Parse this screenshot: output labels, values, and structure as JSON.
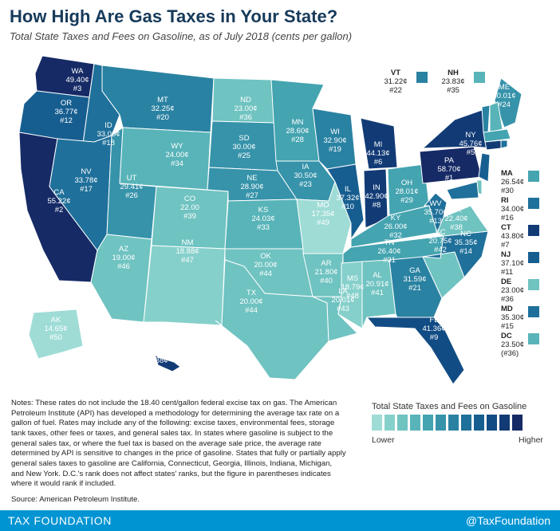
{
  "title": "How High Are Gas Taxes in Your State?",
  "subtitle": "Total State Taxes and Fees on Gasoline, as of July 2018 (cents per gallon)",
  "scale_colors": [
    "#9fdcd6",
    "#86d0cb",
    "#6fc3c1",
    "#58b4b8",
    "#44a4b0",
    "#3693aa",
    "#2a82a2",
    "#1f709a",
    "#175e90",
    "#124c84",
    "#123b76",
    "#162a66"
  ],
  "legend": {
    "title": "Total State Taxes and Fees on Gasoline",
    "low": "Lower",
    "high": "Higher"
  },
  "states": [
    {
      "code": "WA",
      "value": "49.40¢",
      "rank": "#3",
      "level": 11
    },
    {
      "code": "OR",
      "value": "36.77¢",
      "rank": "#12",
      "level": 8
    },
    {
      "code": "CA",
      "value": "55.22¢",
      "rank": "#2",
      "level": 11
    },
    {
      "code": "ID",
      "value": "33.00¢",
      "rank": "#18",
      "level": 7
    },
    {
      "code": "NV",
      "value": "33.78¢",
      "rank": "#17",
      "level": 7
    },
    {
      "code": "MT",
      "value": "32.25¢",
      "rank": "#20",
      "level": 6
    },
    {
      "code": "WY",
      "value": "24.00¢",
      "rank": "#34",
      "level": 3
    },
    {
      "code": "UT",
      "value": "29.41¢",
      "rank": "#26",
      "level": 5
    },
    {
      "code": "AZ",
      "value": "19.00¢",
      "rank": "#46",
      "level": 2
    },
    {
      "code": "CO",
      "value": "22.00",
      "rank": "#39",
      "level": 2
    },
    {
      "code": "NM",
      "value": "18.88¢",
      "rank": "#47",
      "level": 1
    },
    {
      "code": "ND",
      "value": "23.00¢",
      "rank": "#36",
      "level": 2
    },
    {
      "code": "SD",
      "value": "30.00¢",
      "rank": "#25",
      "level": 5
    },
    {
      "code": "NE",
      "value": "28.90¢",
      "rank": "#27",
      "level": 5
    },
    {
      "code": "KS",
      "value": "24.03¢",
      "rank": "#33",
      "level": 3
    },
    {
      "code": "OK",
      "value": "20.00¢",
      "rank": "#44",
      "level": 2
    },
    {
      "code": "TX",
      "value": "20.00¢",
      "rank": "#44",
      "level": 2
    },
    {
      "code": "MN",
      "value": "28.60¢",
      "rank": "#28",
      "level": 4
    },
    {
      "code": "IA",
      "value": "30.50¢",
      "rank": "#23",
      "level": 5
    },
    {
      "code": "MO",
      "value": "17.35¢",
      "rank": "#49",
      "level": 0
    },
    {
      "code": "AR",
      "value": "21.80¢",
      "rank": "#40",
      "level": 2
    },
    {
      "code": "LA",
      "value": "20.01¢",
      "rank": "#43",
      "level": 2
    },
    {
      "code": "WI",
      "value": "32.90¢",
      "rank": "#19",
      "level": 6
    },
    {
      "code": "IL",
      "value": "37.32¢",
      "rank": "#10",
      "level": 8
    },
    {
      "code": "MI",
      "value": "44.13¢",
      "rank": "#6",
      "level": 10
    },
    {
      "code": "IN",
      "value": "42.90¢",
      "rank": "#8",
      "level": 10
    },
    {
      "code": "OH",
      "value": "28.01¢",
      "rank": "#29",
      "level": 4
    },
    {
      "code": "KY",
      "value": "26.00¢",
      "rank": "#32",
      "level": 4
    },
    {
      "code": "TN",
      "value": "26.40¢",
      "rank": "#31",
      "level": 4
    },
    {
      "code": "MS",
      "value": "18.79¢",
      "rank": "#48",
      "level": 1
    },
    {
      "code": "AL",
      "value": "20.91¢",
      "rank": "#41",
      "level": 2
    },
    {
      "code": "GA",
      "value": "31.59¢",
      "rank": "#21",
      "level": 6
    },
    {
      "code": "FL",
      "value": "41.36¢",
      "rank": "#9",
      "level": 9
    },
    {
      "code": "SC",
      "value": "20.75¢",
      "rank": "#42",
      "level": 2
    },
    {
      "code": "NC",
      "value": "35.35¢",
      "rank": "#14",
      "level": 7
    },
    {
      "code": "VA",
      "value": "22.40¢",
      "rank": "#38",
      "level": 2
    },
    {
      "code": "WV",
      "value": "35.70¢",
      "rank": "#13",
      "level": 7
    },
    {
      "code": "PA",
      "value": "58.70¢",
      "rank": "#1",
      "level": 11
    },
    {
      "code": "NY",
      "value": "45.76¢",
      "rank": "#5",
      "level": 10
    },
    {
      "code": "ME",
      "value": "30.01¢",
      "rank": "#24",
      "level": 5
    },
    {
      "code": "AK",
      "value": "14.65¢",
      "rank": "#50",
      "level": 0
    },
    {
      "code": "HI",
      "value": "47.88¢",
      "rank": "#4",
      "level": 10
    }
  ],
  "callouts": [
    {
      "code": "VT",
      "value": "31.22¢",
      "rank": "#22",
      "level": 6
    },
    {
      "code": "NH",
      "value": "23.83¢",
      "rank": "#35",
      "level": 3
    },
    {
      "code": "MA",
      "value": "26.54¢",
      "rank": "#30",
      "level": 4
    },
    {
      "code": "RI",
      "value": "34.00¢",
      "rank": "#16",
      "level": 7
    },
    {
      "code": "CT",
      "value": "43.80¢",
      "rank": "#7",
      "level": 10
    },
    {
      "code": "NJ",
      "value": "37.10¢",
      "rank": "#11",
      "level": 8
    },
    {
      "code": "DE",
      "value": "23.00¢",
      "rank": "#36",
      "level": 2
    },
    {
      "code": "MD",
      "value": "35.30¢",
      "rank": "#15",
      "level": 7
    },
    {
      "code": "DC",
      "value": "23.50¢",
      "rank": "(#36)",
      "level": 3
    }
  ],
  "notes": "Notes: These rates do not include the 18.40 cent/gallon federal excise tax on gas. The American Petroleum Institute (API) has developed a methodology for determining the average tax rate on a gallon of fuel. Rates may include any of the following: excise taxes, environmental fees, storage tank taxes, other fees or taxes, and general sales tax. In states where gasoline is subject to the general sales tax, or where the fuel tax is based on the average sale price, the average rate determined by API is sensitive to changes in the price of gasoline. States that fully or partially apply general sales taxes to gasoline are California, Connecticut, Georgia, Illinois, Indiana, Michigan, and New York. D.C.'s rank does not affect states' ranks, but the figure in parentheses indicates where it would rank if included.",
  "source": "Source: American Petroleum Institute.",
  "footer": {
    "brand": "TAX FOUNDATION",
    "handle": "@TaxFoundation"
  }
}
